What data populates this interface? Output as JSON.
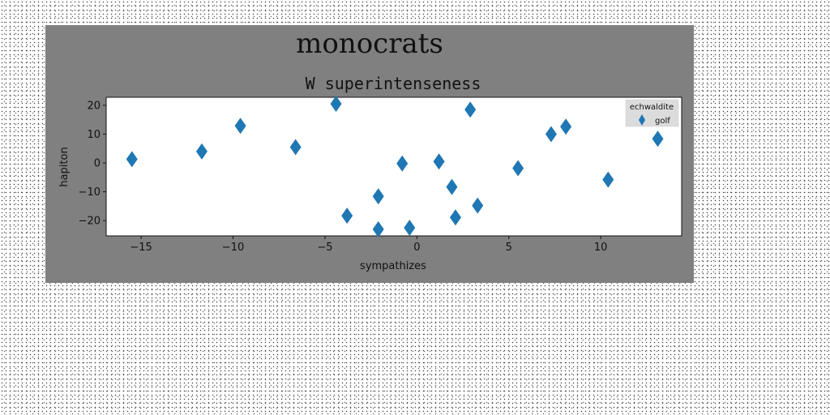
{
  "chart_data": {
    "type": "scatter",
    "suptitle": "monocrats",
    "title": "W superintenseness",
    "xlabel": "sympathizes",
    "ylabel": "hapiton",
    "xlim": [
      -16.9,
      14.4
    ],
    "ylim": [
      -25.3,
      22.8
    ],
    "xticks": [
      -15,
      -10,
      -5,
      0,
      5,
      10
    ],
    "xtick_labels": [
      "−15",
      "−10",
      "−5",
      "0",
      "5",
      "10"
    ],
    "yticks": [
      -20,
      -10,
      0,
      10,
      20
    ],
    "ytick_labels": [
      "−20",
      "−10",
      "0",
      "10",
      "20"
    ],
    "grid": false,
    "legend": {
      "title": "echwaldite",
      "position": "top-right"
    },
    "marker": "diamond",
    "color": "#1f77b4",
    "background_color": "#808080",
    "series": [
      {
        "name": "golf",
        "x": [
          -15.5,
          -11.7,
          -9.6,
          -6.6,
          -4.4,
          -3.8,
          -2.1,
          -2.1,
          -0.8,
          -0.4,
          1.2,
          1.9,
          2.1,
          2.9,
          3.3,
          5.5,
          7.3,
          8.1,
          10.4,
          13.1
        ],
        "y": [
          1.3,
          4.0,
          12.9,
          5.5,
          20.5,
          -18.3,
          -11.6,
          -23.0,
          -0.2,
          -22.5,
          0.5,
          -8.3,
          -18.9,
          18.5,
          -14.8,
          -1.8,
          10.0,
          12.6,
          -5.8,
          8.4
        ]
      }
    ]
  }
}
